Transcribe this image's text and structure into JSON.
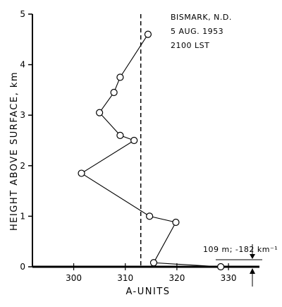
{
  "chart_data": {
    "type": "line",
    "annotation_lines": [
      "BISMARK, N.D.",
      "5 AUG. 1953",
      "2100  LST"
    ],
    "xlabel": "A-UNITS",
    "ylabel": "HEIGHT  ABOVE  SURFACE, km",
    "xlim": [
      292,
      336
    ],
    "ylim": [
      0,
      5
    ],
    "x_ticks": [
      300,
      310,
      320,
      330
    ],
    "y_ticks": [
      0,
      1,
      2,
      3,
      4,
      5
    ],
    "grid": false,
    "reference_line": {
      "x": 313,
      "style": "dashed"
    },
    "series": [
      {
        "points": [
          {
            "x": 328.5,
            "y": 0.0
          },
          {
            "x": 315.5,
            "y": 0.08
          },
          {
            "x": 319.8,
            "y": 0.88
          },
          {
            "x": 314.7,
            "y": 1.0
          },
          {
            "x": 301.5,
            "y": 1.85
          },
          {
            "x": 311.7,
            "y": 2.5
          },
          {
            "x": 309.0,
            "y": 2.6
          },
          {
            "x": 305.0,
            "y": 3.05
          },
          {
            "x": 307.8,
            "y": 3.45
          },
          {
            "x": 309.0,
            "y": 3.75
          },
          {
            "x": 314.4,
            "y": 4.6
          }
        ]
      }
    ],
    "surface_annotation": "109 m; -182 km⁻¹"
  }
}
